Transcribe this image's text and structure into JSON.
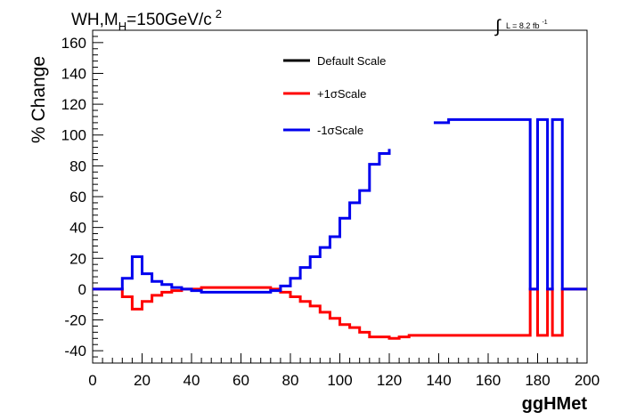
{
  "chart_data": {
    "type": "line",
    "step": true,
    "title": {
      "main": "WH,M",
      "sub": "H",
      "rest": "=150GeV/c",
      "sup": "2"
    },
    "lumi": {
      "integral": "∫",
      "text": "L = 8.2 fb",
      "sup": "-1"
    },
    "xlabel": "ggHMet",
    "ylabel": "% Change",
    "xlim": [
      0,
      200
    ],
    "ylim": [
      -48,
      168
    ],
    "xticks": [
      0,
      20,
      40,
      60,
      80,
      100,
      120,
      140,
      160,
      180,
      200
    ],
    "yticks": [
      -40,
      -20,
      0,
      20,
      40,
      60,
      80,
      100,
      120,
      140,
      160
    ],
    "grid": false,
    "legend_position": "top-center",
    "series": [
      {
        "name": "Default Scale",
        "color": "#000000",
        "points": []
      },
      {
        "name": "+1σScale",
        "color": "#ff0000",
        "points": [
          [
            0,
            0
          ],
          [
            12,
            -5
          ],
          [
            16,
            -13
          ],
          [
            20,
            -8
          ],
          [
            24,
            -4
          ],
          [
            28,
            -2
          ],
          [
            32,
            -1
          ],
          [
            36,
            0
          ],
          [
            40,
            0
          ],
          [
            44,
            1
          ],
          [
            48,
            1
          ],
          [
            52,
            1
          ],
          [
            56,
            1
          ],
          [
            60,
            1
          ],
          [
            64,
            1
          ],
          [
            68,
            1
          ],
          [
            72,
            0
          ],
          [
            76,
            -2
          ],
          [
            80,
            -5
          ],
          [
            84,
            -8
          ],
          [
            88,
            -11
          ],
          [
            92,
            -15
          ],
          [
            96,
            -19
          ],
          [
            100,
            -23
          ],
          [
            104,
            -25
          ],
          [
            108,
            -28
          ],
          [
            112,
            -31
          ],
          [
            116,
            -31
          ],
          [
            120,
            -32
          ],
          [
            124,
            -31
          ],
          [
            128,
            -30
          ],
          [
            132,
            -30
          ],
          [
            136,
            -30
          ],
          [
            140,
            -30
          ],
          [
            144,
            -30
          ],
          [
            148,
            -30
          ],
          [
            152,
            -30
          ],
          [
            156,
            -30
          ],
          [
            160,
            -30
          ],
          [
            164,
            -30
          ],
          [
            168,
            -30
          ],
          [
            172,
            -30
          ],
          [
            176,
            -30
          ],
          [
            177,
            0
          ],
          [
            180,
            -30
          ],
          [
            184,
            0
          ],
          [
            186,
            -30
          ],
          [
            190,
            0
          ],
          [
            192,
            0
          ],
          [
            200,
            0
          ]
        ]
      },
      {
        "name": "-1σScale",
        "color": "#0000ee",
        "points": [
          [
            0,
            0
          ],
          [
            12,
            7
          ],
          [
            16,
            21
          ],
          [
            20,
            10
          ],
          [
            24,
            5
          ],
          [
            28,
            3
          ],
          [
            32,
            1
          ],
          [
            36,
            0
          ],
          [
            40,
            -1
          ],
          [
            44,
            -2
          ],
          [
            48,
            -2
          ],
          [
            52,
            -2
          ],
          [
            56,
            -2
          ],
          [
            60,
            -2
          ],
          [
            64,
            -2
          ],
          [
            68,
            -2
          ],
          [
            72,
            -1
          ],
          [
            76,
            2
          ],
          [
            80,
            7
          ],
          [
            84,
            14
          ],
          [
            88,
            21
          ],
          [
            92,
            27
          ],
          [
            96,
            34
          ],
          [
            100,
            46
          ],
          [
            104,
            56
          ],
          [
            108,
            64
          ],
          [
            112,
            81
          ],
          [
            116,
            88
          ],
          [
            120,
            91
          ],
          [
            138,
            108
          ],
          [
            140,
            108
          ],
          [
            144,
            110
          ],
          [
            148,
            110
          ],
          [
            152,
            110
          ],
          [
            156,
            110
          ],
          [
            160,
            110
          ],
          [
            164,
            110
          ],
          [
            168,
            110
          ],
          [
            172,
            110
          ],
          [
            176,
            110
          ],
          [
            177,
            0
          ],
          [
            180,
            110
          ],
          [
            184,
            0
          ],
          [
            186,
            110
          ],
          [
            190,
            0
          ],
          [
            192,
            0
          ],
          [
            200,
            0
          ]
        ]
      }
    ]
  }
}
